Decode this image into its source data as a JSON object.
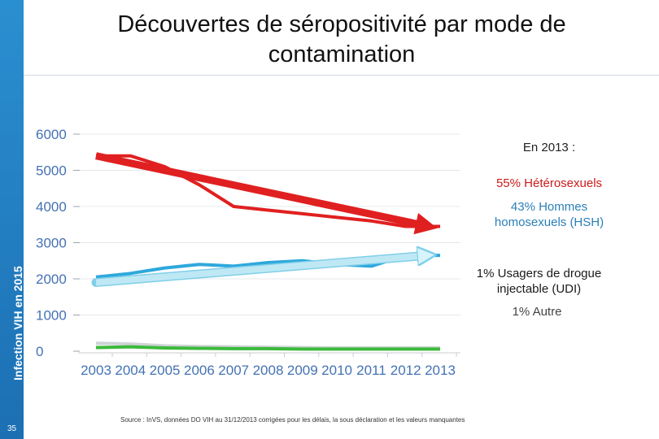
{
  "sidebar": {
    "label": "Infection VIH en 2015",
    "page_number": "35",
    "color": "#1c6fb3"
  },
  "title": "Découvertes de séropositivité par mode de contamination",
  "chart_data": {
    "type": "line",
    "x": [
      2003,
      2004,
      2005,
      2006,
      2007,
      2008,
      2009,
      2010,
      2011,
      2012,
      2013
    ],
    "categories": [
      "2003",
      "2004",
      "2005",
      "2006",
      "2007",
      "2008",
      "2009",
      "2010",
      "2011",
      "2012",
      "2013"
    ],
    "ylim": [
      0,
      6000
    ],
    "yticks": [
      "0",
      "1000",
      "2000",
      "3000",
      "4000",
      "5000",
      "6000"
    ],
    "series": [
      {
        "color": "#e02020",
        "values": [
          5400,
          5400,
          5100,
          4600,
          4000,
          3900,
          3800,
          3700,
          3600,
          3450,
          3450
        ]
      },
      {
        "color": "#2ea8dc",
        "values": [
          2050,
          2150,
          2300,
          2400,
          2350,
          2450,
          2500,
          2400,
          2350,
          2650,
          2650
        ]
      },
      {
        "color": "#cfd3d6",
        "values": [
          220,
          200,
          150,
          130,
          120,
          110,
          100,
          90,
          90,
          90,
          90
        ]
      },
      {
        "color": "#3cba3c",
        "values": [
          100,
          120,
          90,
          80,
          70,
          70,
          60,
          60,
          60,
          60,
          60
        ]
      }
    ],
    "trend_arrows": [
      {
        "color": "#e02020",
        "from": [
          2003,
          5400
        ],
        "to": [
          2013,
          3450
        ]
      },
      {
        "color": "#bfe8f5",
        "from": [
          2003,
          1900
        ],
        "to": [
          2013,
          2650
        ]
      }
    ],
    "grid": "horizontal"
  },
  "annotations": {
    "year_label": "En 2013 :",
    "heterosexual": "55% Hétérosexuels",
    "hsh": "43% Hommes homosexuels (HSH)",
    "udi": "1% Usagers de drogue injectable (UDI)",
    "other": "1% Autre"
  },
  "source": "Source : InVS, données DO VIH au 31/12/2013 corrigées pour les délais, la sous déclaration et les valeurs manquantes"
}
